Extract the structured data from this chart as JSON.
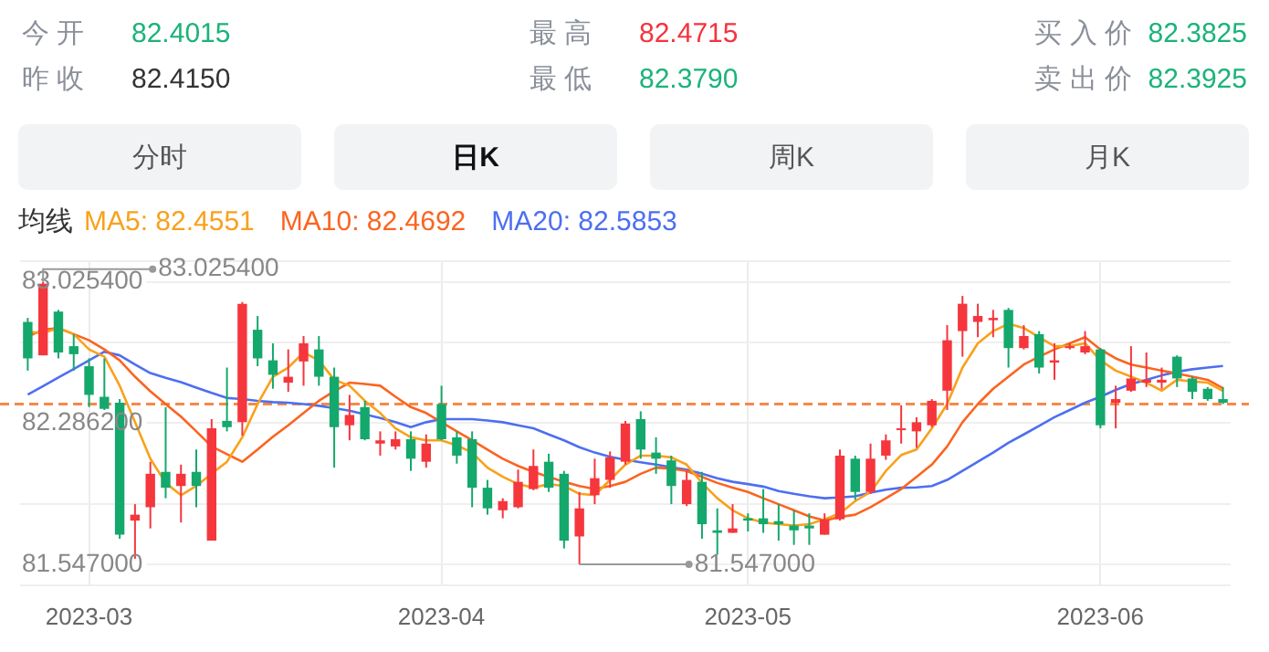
{
  "chart_data": {
    "type": "candlestick",
    "categories": [
      null,
      null,
      null,
      null,
      "2023-03",
      null,
      null,
      null,
      null,
      null,
      null,
      null,
      null,
      null,
      null,
      null,
      null,
      null,
      null,
      null,
      null,
      null,
      null,
      null,
      null,
      null,
      null,
      "2023-04",
      null,
      null,
      null,
      null,
      null,
      null,
      null,
      null,
      null,
      null,
      null,
      null,
      null,
      null,
      null,
      null,
      null,
      null,
      null,
      "2023-05",
      null,
      null,
      null,
      null,
      null,
      null,
      null,
      null,
      null,
      null,
      null,
      null,
      null,
      null,
      null,
      null,
      null,
      null,
      null,
      null,
      null,
      null,
      "2023-06",
      null,
      null,
      null,
      null,
      null,
      null,
      null,
      null
    ],
    "ohlc": [
      [
        82.816,
        82.837,
        82.561,
        82.625
      ],
      [
        82.641,
        83.0254,
        82.641,
        83.016
      ],
      [
        82.87,
        82.879,
        82.625,
        82.656
      ],
      [
        82.689,
        82.752,
        82.561,
        82.647
      ],
      [
        82.584,
        82.625,
        82.37,
        82.434
      ],
      [
        82.424,
        82.625,
        82.355,
        82.361
      ],
      [
        82.393,
        82.412,
        81.681,
        81.702
      ],
      [
        81.776,
        81.862,
        81.576,
        81.807
      ],
      [
        81.846,
        82.084,
        81.735,
        82.021
      ],
      [
        82.031,
        82.37,
        81.893,
        81.948
      ],
      [
        81.957,
        82.069,
        81.766,
        82.021
      ],
      [
        82.031,
        82.148,
        81.846,
        81.957
      ],
      [
        81.671,
        82.307,
        81.671,
        82.259
      ],
      [
        82.298,
        82.577,
        82.243,
        82.265
      ],
      [
        82.291,
        82.92,
        82.221,
        82.911
      ],
      [
        82.775,
        82.847,
        82.584,
        82.625
      ],
      [
        82.615,
        82.704,
        82.466,
        82.539
      ],
      [
        82.498,
        82.672,
        82.45,
        82.529
      ],
      [
        82.609,
        82.742,
        82.482,
        82.704
      ],
      [
        82.672,
        82.742,
        82.482,
        82.529
      ],
      [
        82.529,
        82.577,
        82.053,
        82.265
      ],
      [
        82.275,
        82.434,
        82.196,
        82.329
      ],
      [
        82.37,
        82.403,
        82.196,
        82.202
      ],
      [
        82.179,
        82.243,
        82.116,
        82.196
      ],
      [
        82.164,
        82.243,
        82.148,
        82.202
      ],
      [
        82.202,
        82.243,
        82.036,
        82.1
      ],
      [
        82.084,
        82.227,
        82.053,
        82.179
      ],
      [
        82.386,
        82.482,
        82.196,
        82.202
      ],
      [
        82.212,
        82.243,
        82.074,
        82.116
      ],
      [
        82.202,
        82.243,
        81.846,
        81.948
      ],
      [
        81.948,
        81.989,
        81.807,
        81.84
      ],
      [
        81.83,
        81.893,
        81.788,
        81.878
      ],
      [
        81.846,
        82.043,
        81.84,
        81.979
      ],
      [
        81.941,
        82.148,
        81.935,
        82.062
      ],
      [
        82.084,
        82.126,
        81.926,
        81.948
      ],
      [
        82.021,
        82.036,
        81.63,
        81.671
      ],
      [
        81.693,
        81.926,
        81.547,
        81.84
      ],
      [
        81.909,
        82.1,
        81.862,
        81.998
      ],
      [
        81.989,
        82.138,
        81.948,
        82.107
      ],
      [
        82.084,
        82.298,
        82.069,
        82.284
      ],
      [
        82.307,
        82.348,
        82.1,
        82.148
      ],
      [
        82.132,
        82.212,
        82.021,
        82.1
      ],
      [
        82.091,
        82.116,
        81.862,
        81.957
      ],
      [
        81.862,
        82.036,
        81.852,
        81.989
      ],
      [
        81.979,
        82.031,
        81.681,
        81.757
      ],
      [
        81.725,
        81.84,
        81.598,
        81.712
      ],
      [
        81.712,
        81.862,
        81.712,
        81.735
      ],
      [
        81.788,
        81.814,
        81.719,
        81.776
      ],
      [
        81.788,
        81.941,
        81.712,
        81.757
      ],
      [
        81.773,
        81.862,
        81.671,
        81.757
      ],
      [
        81.75,
        81.83,
        81.649,
        81.725
      ],
      [
        81.75,
        81.814,
        81.649,
        81.735
      ],
      [
        81.702,
        81.814,
        81.702,
        81.783
      ],
      [
        81.783,
        82.148,
        81.776,
        82.116
      ],
      [
        82.1,
        82.116,
        81.884,
        81.926
      ],
      [
        81.926,
        82.179,
        81.916,
        82.1
      ],
      [
        82.116,
        82.227,
        82.094,
        82.196
      ],
      [
        82.253,
        82.38,
        82.179,
        82.259
      ],
      [
        82.243,
        82.317,
        82.157,
        82.291
      ],
      [
        82.275,
        82.412,
        82.265,
        82.403
      ],
      [
        82.456,
        82.799,
        82.355,
        82.72
      ],
      [
        82.768,
        82.952,
        82.634,
        82.911
      ],
      [
        82.816,
        82.911,
        82.736,
        82.847
      ],
      [
        82.825,
        82.879,
        82.736,
        82.837
      ],
      [
        82.879,
        82.889,
        82.577,
        82.679
      ],
      [
        82.679,
        82.799,
        82.672,
        82.742
      ],
      [
        82.752,
        82.768,
        82.546,
        82.577
      ],
      [
        82.603,
        82.704,
        82.513,
        82.615
      ],
      [
        82.679,
        82.704,
        82.672,
        82.689
      ],
      [
        82.656,
        82.768,
        82.647,
        82.689
      ],
      [
        82.672,
        82.679,
        82.259,
        82.275
      ],
      [
        82.393,
        82.482,
        82.259,
        82.412
      ],
      [
        82.456,
        82.689,
        82.45,
        82.52
      ],
      [
        82.498,
        82.656,
        82.475,
        82.513
      ],
      [
        82.498,
        82.577,
        82.466,
        82.513
      ],
      [
        82.634,
        82.641,
        82.475,
        82.52
      ],
      [
        82.52,
        82.529,
        82.412,
        82.45
      ],
      [
        82.466,
        82.475,
        82.403,
        82.412
      ],
      [
        82.412,
        82.475,
        82.386,
        82.393
      ]
    ],
    "colors": [
      "#14a86c",
      "#f5363d",
      "#14a86c",
      "#14a86c",
      "#14a86c",
      "#14a86c",
      "#14a86c",
      "#f5363d",
      "#f5363d",
      "#14a86c",
      "#f5363d",
      "#14a86c",
      "#f5363d",
      "#14a86c",
      "#f5363d",
      "#14a86c",
      "#14a86c",
      "#f5363d",
      "#f5363d",
      "#14a86c",
      "#14a86c",
      "#f5363d",
      "#14a86c",
      "#f5363d",
      "#f5363d",
      "#14a86c",
      "#f5363d",
      "#14a86c",
      "#14a86c",
      "#14a86c",
      "#14a86c",
      "#f5363d",
      "#f5363d",
      "#f5363d",
      "#14a86c",
      "#14a86c",
      "#f5363d",
      "#f5363d",
      "#f5363d",
      "#f5363d",
      "#14a86c",
      "#14a86c",
      "#14a86c",
      "#f5363d",
      "#14a86c",
      "#14a86c",
      "#f5363d",
      "#14a86c",
      "#14a86c",
      "#14a86c",
      "#14a86c",
      "#14a86c",
      "#f5363d",
      "#f5363d",
      "#14a86c",
      "#f5363d",
      "#f5363d",
      "#f5363d",
      "#f5363d",
      "#f5363d",
      "#f5363d",
      "#f5363d",
      "#f5363d",
      "#f5363d",
      "#14a86c",
      "#f5363d",
      "#14a86c",
      "#f5363d",
      "#f5363d",
      "#f5363d",
      "#14a86c",
      "#f5363d",
      "#f5363d",
      "#f5363d",
      "#f5363d",
      "#14a86c",
      "#14a86c",
      "#14a86c",
      "#14a86c"
    ],
    "series": [
      {
        "name": "MA5: 82.4551",
        "type": "line",
        "color": "#f9a11b",
        "values": [
          82.763,
          82.758,
          82.784,
          82.752,
          82.672,
          82.634,
          82.482,
          82.291,
          82.1,
          81.973,
          81.909,
          81.957,
          82.021,
          82.084,
          82.212,
          82.386,
          82.529,
          82.577,
          82.656,
          82.615,
          82.513,
          82.482,
          82.403,
          82.339,
          82.259,
          82.212,
          82.196,
          82.196,
          82.17,
          82.132,
          82.053,
          82.005,
          81.967,
          81.948,
          81.967,
          81.957,
          81.916,
          81.909,
          81.989,
          82.069,
          82.116,
          82.116,
          82.107,
          82.069,
          81.973,
          81.893,
          81.83,
          81.788,
          81.766,
          81.757,
          81.75,
          81.757,
          81.783,
          81.814,
          81.878,
          81.926,
          82.036,
          82.119,
          82.148,
          82.259,
          82.386,
          82.577,
          82.704,
          82.768,
          82.806,
          82.784,
          82.736,
          82.689,
          82.689,
          82.704,
          82.615,
          82.561,
          82.529,
          82.498,
          82.456,
          82.513,
          82.504,
          82.498,
          82.4551
        ]
      },
      {
        "name": "MA10: 82.4692",
        "type": "line",
        "color": "#fb6420",
        "values": [
          82.739,
          82.775,
          82.784,
          82.752,
          82.72,
          82.672,
          82.615,
          82.529,
          82.453,
          82.386,
          82.32,
          82.243,
          82.164,
          82.124,
          82.084,
          82.148,
          82.215,
          82.275,
          82.339,
          82.403,
          82.453,
          82.498,
          82.491,
          82.482,
          82.424,
          82.37,
          82.339,
          82.291,
          82.243,
          82.196,
          82.148,
          82.1,
          82.062,
          82.031,
          82.005,
          81.979,
          81.957,
          81.941,
          81.957,
          81.979,
          82.021,
          82.053,
          82.048,
          82.036,
          82.005,
          81.973,
          81.948,
          81.926,
          81.893,
          81.862,
          81.83,
          81.798,
          81.776,
          81.795,
          81.807,
          81.846,
          81.893,
          81.941,
          82.005,
          82.069,
          82.164,
          82.291,
          82.386,
          82.466,
          82.529,
          82.593,
          82.634,
          82.672,
          82.704,
          82.736,
          82.672,
          82.625,
          82.593,
          82.577,
          82.561,
          82.546,
          82.529,
          82.513,
          82.4692
        ]
      },
      {
        "name": "MA20: 82.5853",
        "type": "line",
        "color": "#4d6ff0",
        "values": [
          82.436,
          82.48,
          82.525,
          82.569,
          82.615,
          82.66,
          82.641,
          82.593,
          82.548,
          82.523,
          82.501,
          82.472,
          82.444,
          82.418,
          82.412,
          82.403,
          82.396,
          82.393,
          82.386,
          82.377,
          82.364,
          82.351,
          82.332,
          82.313,
          82.291,
          82.265,
          82.291,
          82.307,
          82.307,
          82.307,
          82.3,
          82.291,
          82.275,
          82.259,
          82.227,
          82.196,
          82.16,
          82.132,
          82.11,
          82.094,
          82.081,
          82.069,
          82.055,
          82.043,
          82.021,
          81.998,
          81.979,
          81.967,
          81.954,
          81.931,
          81.916,
          81.903,
          81.893,
          81.897,
          81.903,
          81.922,
          81.938,
          81.948,
          81.95,
          81.957,
          81.989,
          82.036,
          82.084,
          82.132,
          82.183,
          82.227,
          82.272,
          82.317,
          82.355,
          82.393,
          82.424,
          82.46,
          82.491,
          82.513,
          82.536,
          82.555,
          82.568,
          82.577,
          82.5853
        ]
      }
    ],
    "legend": "top left",
    "legend_title": "均线",
    "marker": "none",
    "grid": true,
    "ylim": [
      81.438,
      83.134
    ],
    "yticks": [
      {
        "value": 81.438,
        "label": null
      },
      {
        "value": 81.547,
        "label": "81.547000"
      },
      {
        "value": 81.862,
        "label": null
      },
      {
        "value": 82.2862,
        "label": "82.286200"
      },
      {
        "value": 82.71,
        "label": null
      },
      {
        "value": 83.0254,
        "label": "83.025400"
      },
      {
        "value": 83.134,
        "label": null
      }
    ],
    "ref_lines": [
      {
        "axis": "y",
        "value": 82.386,
        "color": "#f7894a",
        "line_style": "dashed"
      }
    ],
    "annotations": [
      "今 开",
      "82.4015",
      "昨 收",
      "82.4150",
      "最 高",
      "82.4715",
      "最 低",
      "82.3790",
      "买 入 价",
      "82.3825",
      "卖 出 价",
      "82.3925",
      "分时",
      "日K",
      "周K",
      "月K",
      "83.025400",
      "81.547000"
    ]
  }
}
